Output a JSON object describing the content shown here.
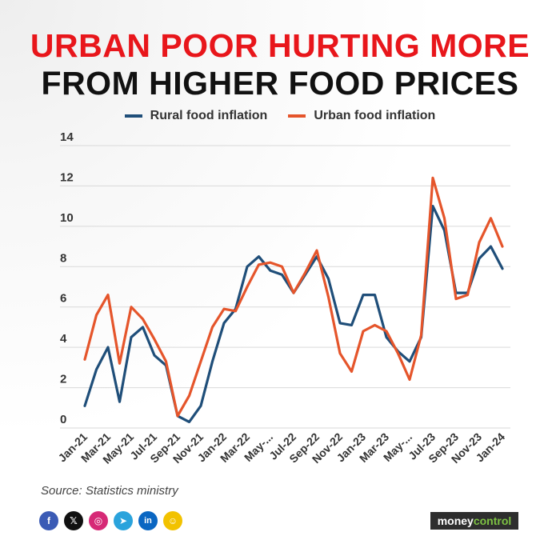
{
  "title": {
    "line1": "URBAN POOR HURTING MORE",
    "line2": "FROM HIGHER FOOD PRICES"
  },
  "source": "Source: Statistics ministry",
  "brand": {
    "part1": "money",
    "part2": "control"
  },
  "social_icons": [
    "facebook-icon",
    "x-icon",
    "instagram-icon",
    "telegram-icon",
    "linkedin-icon",
    "snapchat-icon"
  ],
  "colors": {
    "rural": "#1f4e79",
    "urban": "#e5552b",
    "title_red": "#e8161b"
  },
  "chart_data": {
    "type": "line",
    "title": "URBAN POOR HURTING MORE FROM HIGHER FOOD PRICES",
    "xlabel": "",
    "ylabel": "",
    "ylim": [
      0,
      14
    ],
    "yticks": [
      0,
      2,
      4,
      6,
      8,
      10,
      12,
      14
    ],
    "grid": true,
    "legend_position": "top",
    "x": [
      "Jan-21",
      "Feb-21",
      "Mar-21",
      "Apr-21",
      "May-21",
      "Jun-21",
      "Jul-21",
      "Aug-21",
      "Sep-21",
      "Oct-21",
      "Nov-21",
      "Dec-21",
      "Jan-22",
      "Feb-22",
      "Mar-22",
      "Apr-22",
      "May-22",
      "Jun-22",
      "Jul-22",
      "Aug-22",
      "Sep-22",
      "Oct-22",
      "Nov-22",
      "Dec-22",
      "Jan-23",
      "Feb-23",
      "Mar-23",
      "Apr-23",
      "May-23",
      "Jun-23",
      "Jul-23",
      "Aug-23",
      "Sep-23",
      "Oct-23",
      "Nov-23",
      "Dec-23",
      "Jan-24"
    ],
    "tick_labels": [
      "Jan-21",
      "Mar-21",
      "May-21",
      "Jul-21",
      "Sep-21",
      "Nov-21",
      "Jan-22",
      "Mar-22",
      "May-...",
      "Jul-22",
      "Sep-22",
      "Nov-22",
      "Jan-23",
      "Mar-23",
      "May-...",
      "Jul-23",
      "Sep-23",
      "Nov-23",
      "Jan-24"
    ],
    "series": [
      {
        "name": "Rural food inflation",
        "values": [
          1.1,
          2.9,
          4.0,
          1.3,
          4.5,
          5.0,
          3.6,
          3.1,
          0.6,
          0.3,
          1.1,
          3.3,
          5.2,
          5.9,
          8.0,
          8.5,
          7.8,
          7.6,
          6.7,
          7.6,
          8.5,
          7.4,
          5.2,
          5.1,
          6.6,
          6.6,
          4.5,
          3.8,
          3.3,
          4.5,
          11.0,
          9.8,
          6.7,
          6.7,
          8.4,
          9.0,
          7.9
        ]
      },
      {
        "name": "Urban food inflation",
        "values": [
          3.4,
          5.6,
          6.6,
          3.2,
          6.0,
          5.4,
          4.4,
          3.3,
          0.6,
          1.6,
          3.3,
          5.0,
          5.9,
          5.8,
          7.0,
          8.1,
          8.2,
          8.0,
          6.7,
          7.7,
          8.8,
          6.5,
          3.7,
          2.8,
          4.8,
          5.1,
          4.8,
          3.7,
          2.4,
          4.6,
          12.4,
          10.4,
          6.4,
          6.6,
          9.2,
          10.4,
          9.0
        ]
      }
    ]
  }
}
